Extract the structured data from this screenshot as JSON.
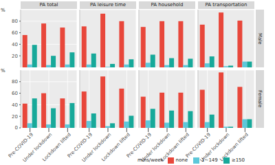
{
  "chart_data": {
    "type": "bar",
    "y_label": "%",
    "legend_title": "mins/week",
    "legend": "bottom",
    "grid": true,
    "categories": [
      "Pre-COVID-19",
      "Under lockdown",
      "Lockdown lifted"
    ],
    "ylim": [
      0,
      100
    ],
    "yticks": [
      0,
      20,
      40,
      60,
      80
    ],
    "facets": {
      "columns": [
        "PA total",
        "PA leisure time",
        "PA household",
        "PA transportation"
      ],
      "rows": [
        "Male",
        "Female"
      ]
    },
    "series": [
      {
        "name": "none",
        "color": "#E8473B"
      },
      {
        "name": "1~149",
        "color": "#5CC8DA"
      },
      {
        "name": "≥150",
        "color": "#17A99A"
      }
    ],
    "panels": [
      {
        "row": "Male",
        "column": "PA total",
        "values": [
          [
            56,
            76,
            69
          ],
          [
            5,
            4,
            5
          ],
          [
            39,
            20,
            26
          ]
        ]
      },
      {
        "row": "Male",
        "column": "PA leisure time",
        "values": [
          [
            71,
            93,
            80
          ],
          [
            5,
            1,
            5
          ],
          [
            24,
            6,
            14
          ]
        ]
      },
      {
        "row": "Male",
        "column": "PA household",
        "values": [
          [
            70,
            80,
            80
          ],
          [
            8,
            4,
            4
          ],
          [
            22,
            16,
            15
          ]
        ]
      },
      {
        "row": "Male",
        "column": "PA transportation",
        "values": [
          [
            74,
            95,
            81
          ],
          [
            7,
            2,
            10
          ],
          [
            19,
            3,
            10
          ]
        ]
      },
      {
        "row": "Female",
        "column": "PA total",
        "values": [
          [
            42,
            60,
            51
          ],
          [
            8,
            6,
            6
          ],
          [
            51,
            34,
            43
          ]
        ]
      },
      {
        "row": "Female",
        "column": "PA leisure time",
        "values": [
          [
            63,
            89,
            68
          ],
          [
            12,
            3,
            11
          ],
          [
            25,
            8,
            21
          ]
        ]
      },
      {
        "row": "Female",
        "column": "PA household",
        "values": [
          [
            54,
            61,
            61
          ],
          [
            13,
            9,
            10
          ],
          [
            33,
            30,
            29
          ]
        ]
      },
      {
        "row": "Female",
        "column": "PA transportation",
        "values": [
          [
            66,
            96,
            71
          ],
          [
            10,
            2,
            15
          ],
          [
            23,
            2,
            15
          ]
        ]
      }
    ]
  }
}
